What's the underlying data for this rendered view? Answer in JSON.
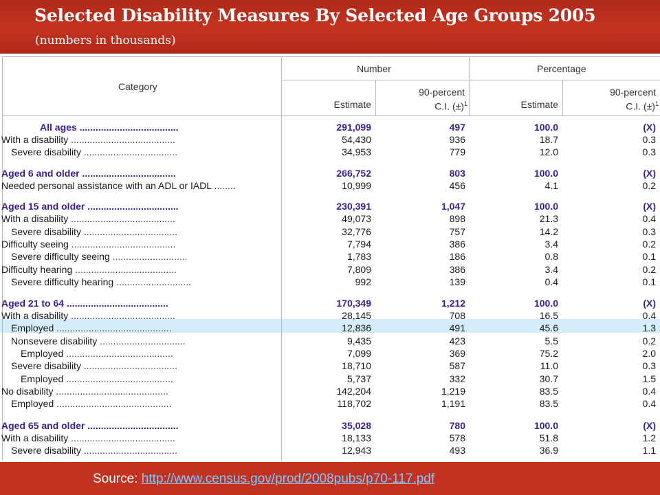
{
  "header": {
    "title": "Selected Disability Measures By Selected Age Groups 2005",
    "subtitle": "(numbers in thousands)"
  },
  "table": {
    "col_category": "Category",
    "group_number": "Number",
    "group_percentage": "Percentage",
    "estimate_label": "Estimate",
    "ci_label_1": "90-percent",
    "ci_label_2": "C.I. (±)",
    "ci_sup": "1",
    "rows": [
      {
        "label": "All ages",
        "dots": " .....................................",
        "group": true,
        "n_est": "291,099",
        "n_ci": "497",
        "p_est": "100.0",
        "p_ci": "(X)"
      },
      {
        "label": "With a disability",
        "dots": " .......................................",
        "group": false,
        "n_est": "54,430",
        "n_ci": "936",
        "p_est": "18.7",
        "p_ci": "0.3"
      },
      {
        "label": "Severe disability",
        "dots": " ...................................",
        "group": false,
        "n_est": "34,953",
        "n_ci": "779",
        "p_est": "12.0",
        "p_ci": "0.3"
      },
      {
        "label": "Aged 6 and older",
        "dots": " ...................................",
        "group": true,
        "n_est": "266,752",
        "n_ci": "803",
        "p_est": "100.0",
        "p_ci": "(X)"
      },
      {
        "label": "Needed personal assistance with an ADL or IADL",
        "dots": " ........",
        "group": false,
        "n_est": "10,999",
        "n_ci": "456",
        "p_est": "4.1",
        "p_ci": "0.2"
      },
      {
        "label": "Aged 15 and older",
        "dots": " ..................................",
        "group": true,
        "n_est": "230,391",
        "n_ci": "1,047",
        "p_est": "100.0",
        "p_ci": "(X)"
      },
      {
        "label": "With a disability",
        "dots": " .......................................",
        "group": false,
        "n_est": "49,073",
        "n_ci": "898",
        "p_est": "21.3",
        "p_ci": "0.4"
      },
      {
        "label": "Severe disability",
        "dots": " ...................................",
        "group": false,
        "n_est": "32,776",
        "n_ci": "757",
        "p_est": "14.2",
        "p_ci": "0.3"
      },
      {
        "label": "Difficulty seeing",
        "dots": " .......................................",
        "group": false,
        "n_est": "7,794",
        "n_ci": "386",
        "p_est": "3.4",
        "p_ci": "0.2"
      },
      {
        "label": "Severe difficulty seeing",
        "dots": " ............................",
        "group": false,
        "n_est": "1,783",
        "n_ci": "186",
        "p_est": "0.8",
        "p_ci": "0.1"
      },
      {
        "label": "Difficulty hearing",
        "dots": " ......................................",
        "group": false,
        "n_est": "7,809",
        "n_ci": "386",
        "p_est": "3.4",
        "p_ci": "0.2"
      },
      {
        "label": "Severe difficulty hearing",
        "dots": " ............................",
        "group": false,
        "n_est": "992",
        "n_ci": "139",
        "p_est": "0.4",
        "p_ci": "0.1"
      },
      {
        "label": "Aged 21 to 64",
        "dots": " ......................................",
        "group": true,
        "n_est": "170,349",
        "n_ci": "1,212",
        "p_est": "100.0",
        "p_ci": "(X)"
      },
      {
        "label": "With a disability",
        "dots": " .......................................",
        "group": false,
        "n_est": "28,145",
        "n_ci": "708",
        "p_est": "16.5",
        "p_ci": "0.4"
      },
      {
        "label": "Employed",
        "dots": " ...........................................",
        "group": false,
        "n_est": "12,836",
        "n_ci": "491",
        "p_est": "45.6",
        "p_ci": "1.3"
      },
      {
        "label": "Nonsevere disability",
        "dots": " ................................",
        "group": false,
        "n_est": "9,435",
        "n_ci": "423",
        "p_est": "5.5",
        "p_ci": "0.2"
      },
      {
        "label": "Employed",
        "dots": " ........................................",
        "group": false,
        "n_est": "7,099",
        "n_ci": "369",
        "p_est": "75.2",
        "p_ci": "2.0"
      },
      {
        "label": "Severe disability",
        "dots": " ...................................",
        "group": false,
        "n_est": "18,710",
        "n_ci": "587",
        "p_est": "11.0",
        "p_ci": "0.3"
      },
      {
        "label": "Employed",
        "dots": " ........................................",
        "group": false,
        "n_est": "5,737",
        "n_ci": "332",
        "p_est": "30.7",
        "p_ci": "1.5"
      },
      {
        "label": "No disability",
        "dots": " ..........................................",
        "group": false,
        "n_est": "142,204",
        "n_ci": "1,219",
        "p_est": "83.5",
        "p_ci": "0.4"
      },
      {
        "label": "Employed",
        "dots": " ...........................................",
        "group": false,
        "n_est": "118,702",
        "n_ci": "1,191",
        "p_est": "83.5",
        "p_ci": "0.4"
      },
      {
        "label": "Aged 65 and older",
        "dots": " ..................................",
        "group": true,
        "n_est": "35,028",
        "n_ci": "780",
        "p_est": "100.0",
        "p_ci": "(X)"
      },
      {
        "label": "With a disability",
        "dots": " .......................................",
        "group": false,
        "n_est": "18,133",
        "n_ci": "578",
        "p_est": "51.8",
        "p_ci": "1.2"
      },
      {
        "label": "Severe disability",
        "dots": " ...................................",
        "group": false,
        "n_est": "12,943",
        "n_ci": "493",
        "p_est": "36.9",
        "p_ci": "1.1"
      }
    ]
  },
  "footer": {
    "source_label": "Source: ",
    "source_link": "http://www.census.gov/prod/2008pubs/p70-117.pdf"
  }
}
